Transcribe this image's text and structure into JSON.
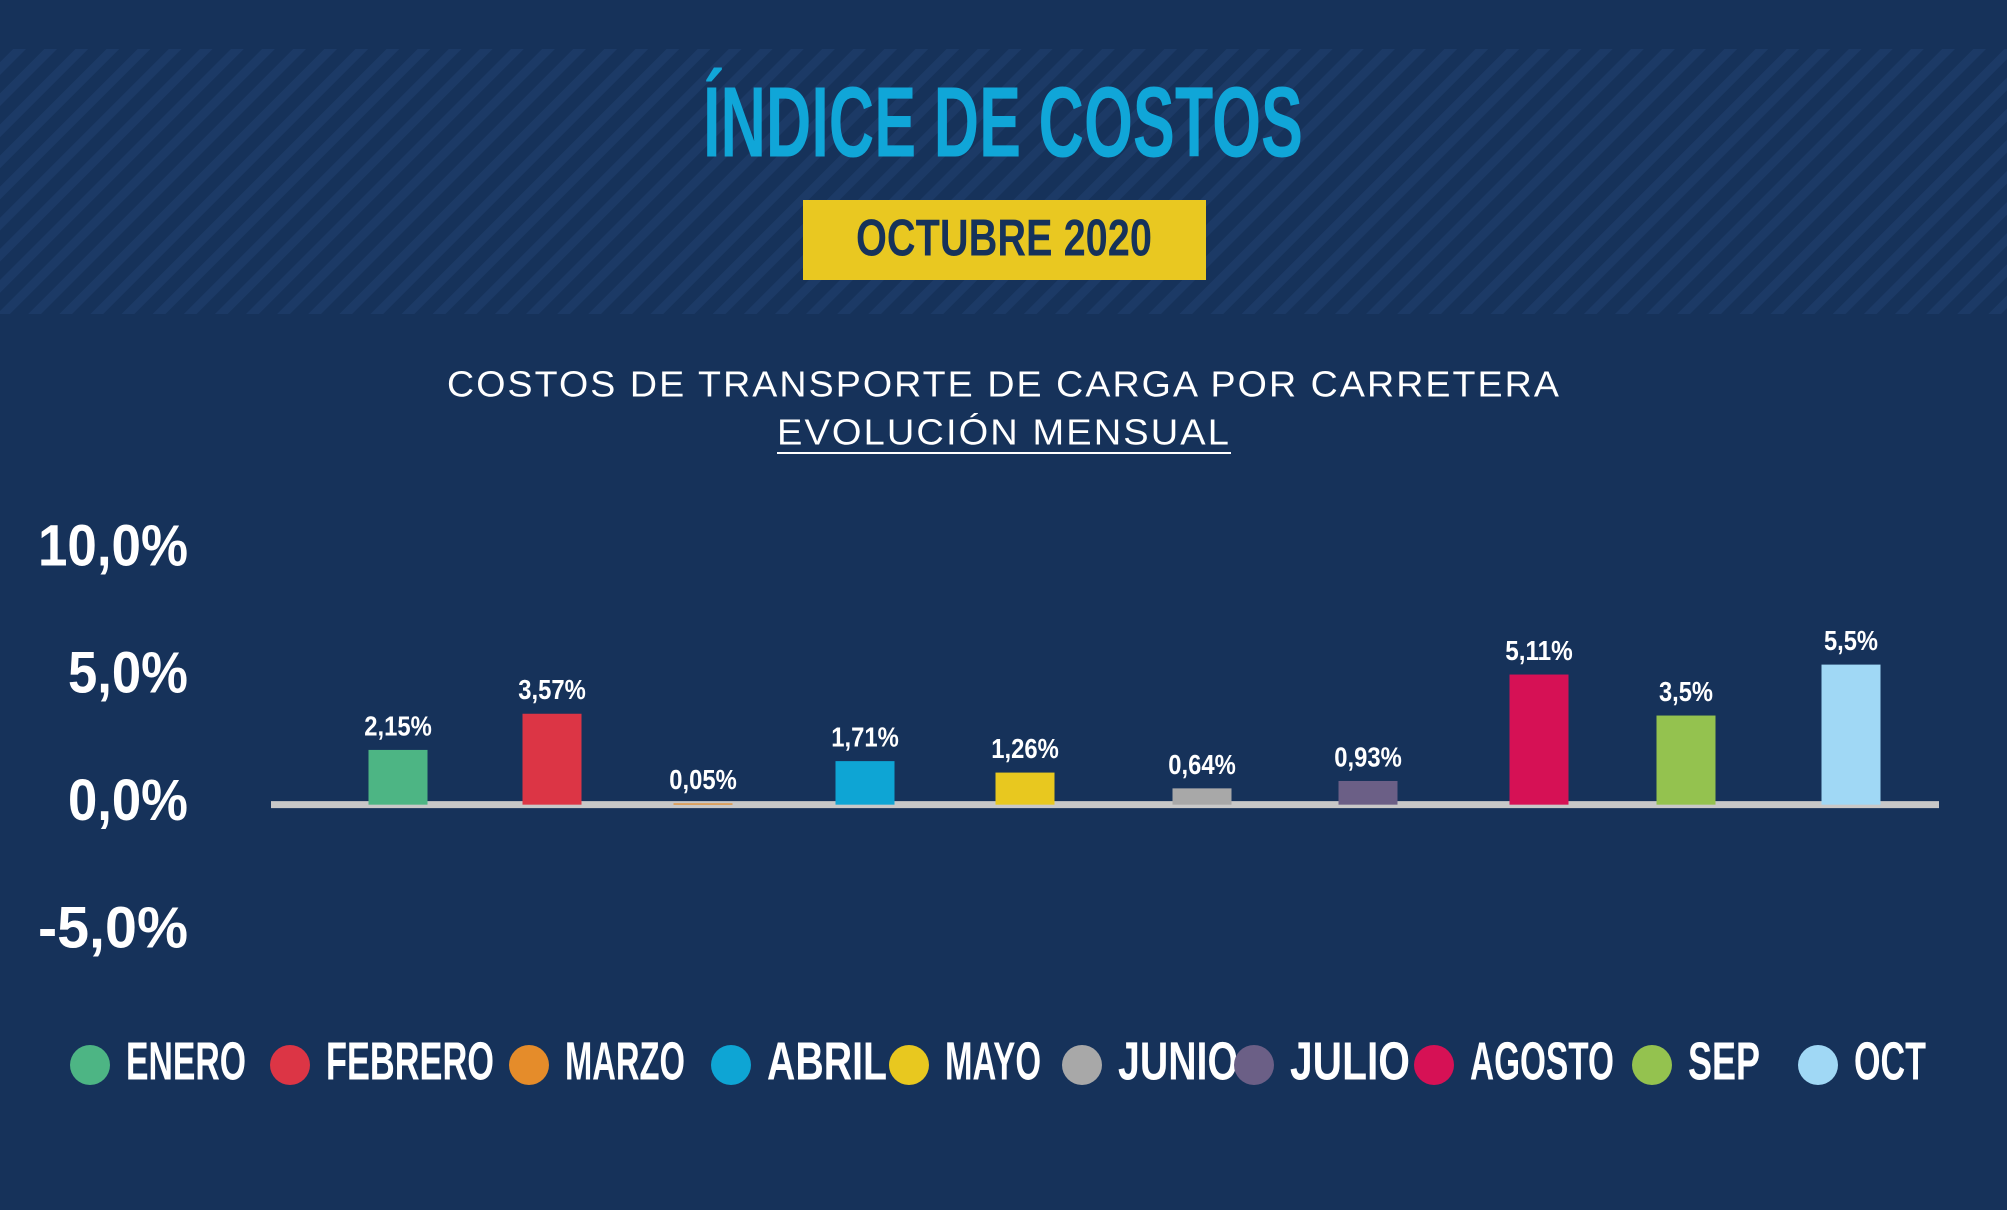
{
  "chart_data": {
    "type": "bar",
    "title": "ÍNDICE DE COSTOS",
    "subtitle": "OCTUBRE 2020",
    "chart_title": "COSTOS DE TRANSPORTE DE CARGA POR CARRETERA",
    "chart_subtitle": "EVOLUCIÓN MENSUAL",
    "categories": [
      "ENERO",
      "FEBRERO",
      "MARZO",
      "ABRIL",
      "MAYO",
      "JUNIO",
      "JULIO",
      "AGOSTO",
      "SEP",
      "OCT"
    ],
    "values": [
      2.15,
      3.57,
      0.05,
      1.71,
      1.26,
      0.64,
      0.93,
      5.11,
      3.5,
      5.5
    ],
    "value_labels": [
      "2,15%",
      "3,57%",
      "0,05%",
      "1,71%",
      "1,26%",
      "0,64%",
      "0,93%",
      "5,11%",
      "3,5%",
      "5,5%"
    ],
    "colors": [
      "#4db584",
      "#dc3545",
      "#e58c2a",
      "#0ea5d4",
      "#e8c81f",
      "#a8a8a8",
      "#6b5f86",
      "#d61155",
      "#94c24f",
      "#a0d8f5"
    ],
    "ylim": [
      -5,
      10
    ],
    "yticks": [
      {
        "value": -5,
        "label": "-5,0%"
      },
      {
        "value": 0,
        "label": "0,0%"
      },
      {
        "value": 5,
        "label": "5,0%"
      },
      {
        "value": 10,
        "label": "10,0%"
      }
    ],
    "legend": "bottom"
  }
}
